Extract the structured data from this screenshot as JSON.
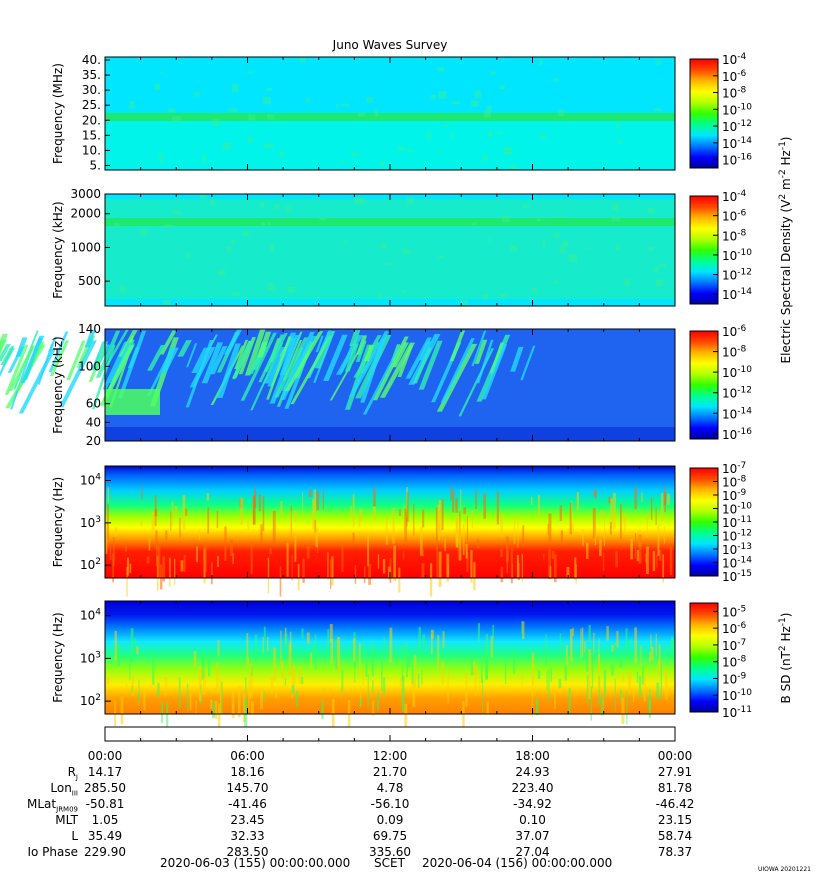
{
  "title": "Juno Waves Survey",
  "colors": {
    "ramp": [
      "#0000a0",
      "#0000ff",
      "#0078ff",
      "#00e6ff",
      "#00ff8c",
      "#32ff00",
      "#b4ff00",
      "#ffff00",
      "#ffb400",
      "#ff4600",
      "#ff0000"
    ]
  },
  "chart_data": [
    {
      "type": "heatmap",
      "panel": 1,
      "ylabel": "Frequency (MHz)",
      "y_ticks": [
        "5.",
        "10.",
        "15.",
        "20.",
        "25.",
        "30.",
        "35.",
        "40."
      ],
      "y_tick_values": [
        5,
        10,
        15,
        20,
        25,
        30,
        35,
        40
      ],
      "ylim": [
        3.5,
        41
      ],
      "colorbar_ticks": [
        "-4",
        "-6",
        "-8",
        "-10",
        "-12",
        "-14",
        "-16"
      ],
      "colorbar_range_log10": [
        -17,
        -4
      ],
      "background_log10": -13.3,
      "feature": "narrow band near 21 MHz"
    },
    {
      "type": "heatmap",
      "panel": 2,
      "ylabel": "Frequency (kHz)",
      "y_ticks": [
        "500",
        "1000",
        "2000",
        "3000"
      ],
      "y_tick_values": [
        500,
        1000,
        2000,
        3000
      ],
      "colorbar_ticks": [
        "-4",
        "-6",
        "-8",
        "-10",
        "-12",
        "-14"
      ],
      "colorbar_range_log10": [
        -15,
        -4
      ],
      "background_log10": -11.5,
      "feature": "narrow band near 1500 kHz"
    },
    {
      "type": "heatmap",
      "panel": 3,
      "ylabel": "Frequency (kHz)",
      "y_ticks": [
        "20",
        "40",
        "60",
        "100",
        "140"
      ],
      "y_tick_values": [
        20,
        40,
        60,
        100,
        140
      ],
      "colorbar_ticks": [
        "-6",
        "-8",
        "-10",
        "-12",
        "-14",
        "-16"
      ],
      "colorbar_range_log10": [
        -16.5,
        -6
      ],
      "background_log10": -13.5,
      "feature": "bursty emission fingers 60-140 kHz"
    },
    {
      "type": "heatmap",
      "panel": 4,
      "ylabel": "Frequency (Hz)",
      "y_ticks": [
        "10",
        "10",
        "10"
      ],
      "y_tick_exps": [
        "2",
        "3",
        "4"
      ],
      "colorbar_ticks": [
        "-7",
        "-8",
        "-9",
        "-10",
        "-11",
        "-12",
        "-13",
        "-14",
        "-15"
      ],
      "colorbar_range_log10": [
        -15,
        -7
      ],
      "feature": "intense low-frequency emission, red below ~200 Hz"
    },
    {
      "type": "heatmap",
      "panel": 5,
      "ylabel": "Frequency (Hz)",
      "y_ticks": [
        "10",
        "10",
        "10"
      ],
      "y_tick_exps": [
        "2",
        "3",
        "4"
      ],
      "colorbar_ticks": [
        "-5",
        "-6",
        "-7",
        "-8",
        "-9",
        "-10",
        "-11"
      ],
      "colorbar_range_log10": [
        -11,
        -4.5
      ],
      "feature": "magnetic emission, orange below ~200 Hz"
    }
  ],
  "colorbar_labels": {
    "electric_text": "Electric Spectral Density (V",
    "electric_rest": " m",
    "electric_end": " Hz",
    "electric_close": ")",
    "bsd_text": "B SD (nT",
    "bsd_rest": " Hz",
    "bsd_close": ")",
    "sup2": "2",
    "supm2": "-2",
    "supm1": "-1"
  },
  "ephemeris": {
    "times": [
      "00:00",
      "06:00",
      "12:00",
      "18:00",
      "00:00"
    ],
    "rows": [
      {
        "label": "R",
        "sub": "J",
        "values": [
          "14.17",
          "18.16",
          "21.70",
          "24.93",
          "27.91"
        ]
      },
      {
        "label": "Lon",
        "sub": "III",
        "values": [
          "285.50",
          "145.70",
          "4.78",
          "223.40",
          "81.78"
        ]
      },
      {
        "label": "MLat",
        "sub": "JRM09",
        "values": [
          "-50.81",
          "-41.46",
          "-56.10",
          "-34.92",
          "-46.42"
        ]
      },
      {
        "label": "MLT",
        "sub": "",
        "values": [
          "1.05",
          "23.45",
          "0.09",
          "0.10",
          "23.15"
        ]
      },
      {
        "label": "L",
        "sub": "",
        "values": [
          "35.49",
          "32.33",
          "69.75",
          "37.07",
          "58.74"
        ]
      },
      {
        "label": "Io Phase",
        "sub": "",
        "values": [
          "229.90",
          "283.50",
          "335.60",
          "27.04",
          "78.37"
        ]
      }
    ]
  },
  "footer": {
    "start": "2020-06-03 (155) 00:00:00.000",
    "scet": "SCET",
    "end": "2020-06-04 (156) 00:00:00.000"
  },
  "credit": "UIOWA 20201221"
}
